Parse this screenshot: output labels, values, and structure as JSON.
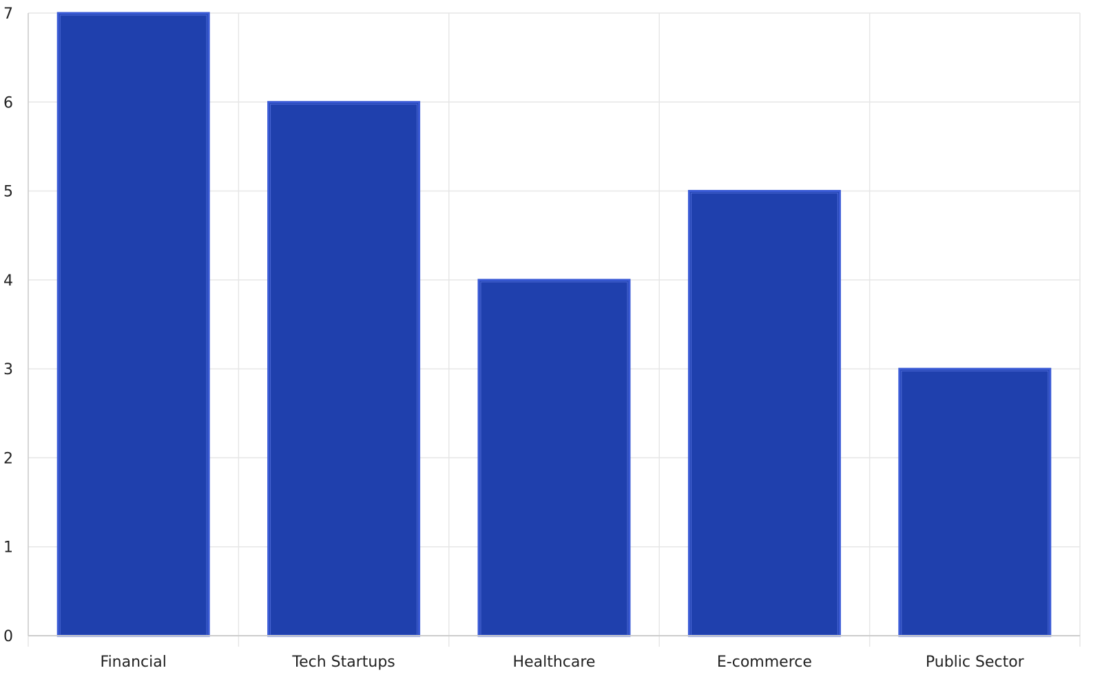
{
  "chart_data": {
    "type": "bar",
    "categories": [
      "Financial",
      "Tech Startups",
      "Healthcare",
      "E-commerce",
      "Public Sector"
    ],
    "values": [
      7,
      6,
      4,
      5,
      3
    ],
    "title": "",
    "xlabel": "",
    "ylabel": "",
    "ylim": [
      0,
      7
    ],
    "yticks": [
      "0",
      "1",
      "2",
      "3",
      "4",
      "5",
      "6",
      "7"
    ],
    "grid": true,
    "legend": "none",
    "colors": {
      "bar": "#1f40ad",
      "bar_outline": "#3b5bd6",
      "grid": "#e6e6e6",
      "axis": "#cccccc"
    }
  }
}
